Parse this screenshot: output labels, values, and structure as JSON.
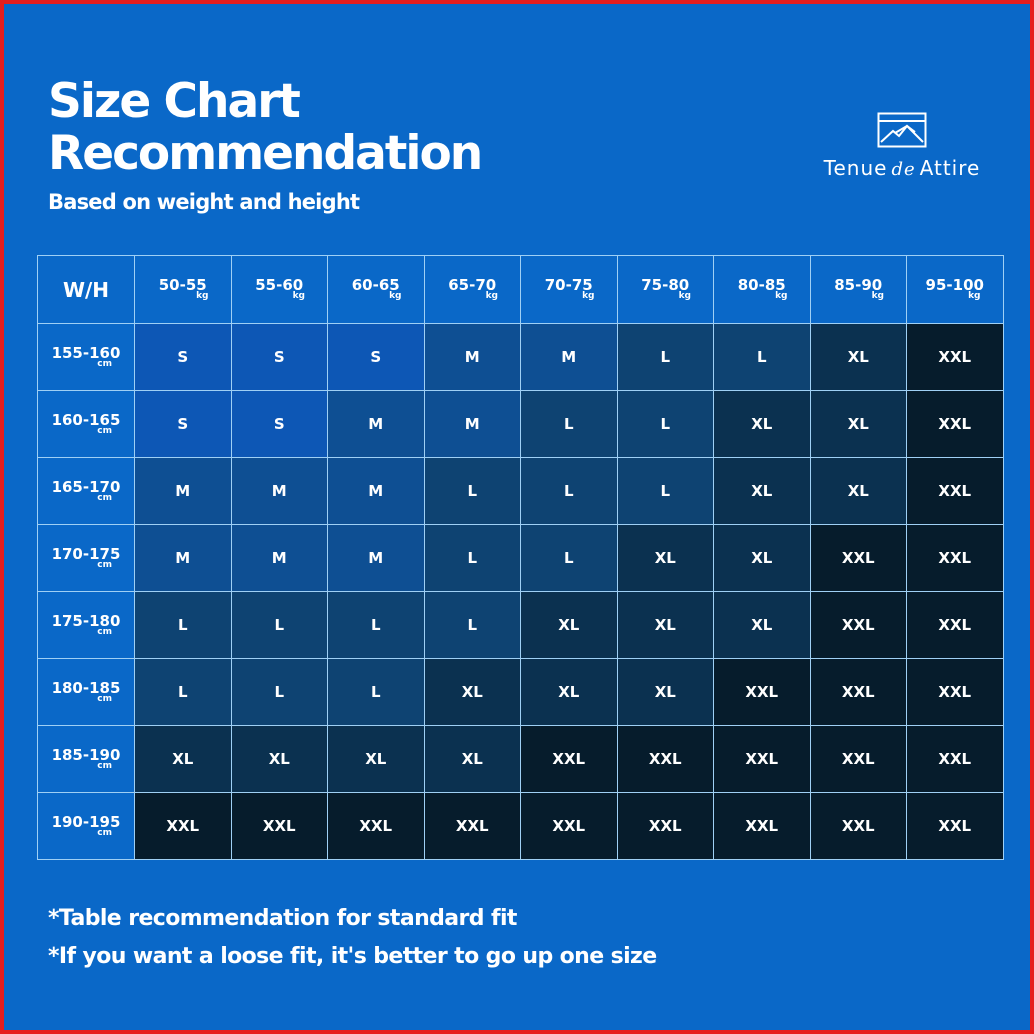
{
  "header": {
    "title_line1": "Size Chart",
    "title_line2": "Recommendation",
    "subtitle": "Based on weight and height"
  },
  "brand": {
    "name_part1": "Tenue",
    "name_part2": "de",
    "name_part3": "Attire",
    "logo_icon": "mountain-frame-icon"
  },
  "table": {
    "corner_label": "W/H",
    "weight_unit": "kg",
    "height_unit": "cm",
    "weights": [
      "50-55",
      "55-60",
      "60-65",
      "65-70",
      "70-75",
      "75-80",
      "80-85",
      "85-90",
      "95-100"
    ],
    "heights": [
      "155-160",
      "160-165",
      "165-170",
      "170-175",
      "175-180",
      "180-185",
      "185-190",
      "190-195"
    ],
    "sizes": [
      [
        "S",
        "S",
        "S",
        "M",
        "M",
        "L",
        "L",
        "XL",
        "XXL"
      ],
      [
        "S",
        "S",
        "M",
        "M",
        "L",
        "L",
        "XL",
        "XL",
        "XXL"
      ],
      [
        "M",
        "M",
        "M",
        "L",
        "L",
        "L",
        "XL",
        "XL",
        "XXL"
      ],
      [
        "M",
        "M",
        "M",
        "L",
        "L",
        "XL",
        "XL",
        "XXL",
        "XXL"
      ],
      [
        "L",
        "L",
        "L",
        "L",
        "XL",
        "XL",
        "XL",
        "XXL",
        "XXL"
      ],
      [
        "L",
        "L",
        "L",
        "XL",
        "XL",
        "XL",
        "XXL",
        "XXL",
        "XXL"
      ],
      [
        "XL",
        "XL",
        "XL",
        "XL",
        "XXL",
        "XXL",
        "XXL",
        "XXL",
        "XXL"
      ],
      [
        "XXL",
        "XXL",
        "XXL",
        "XXL",
        "XXL",
        "XXL",
        "XXL",
        "XXL",
        "XXL"
      ]
    ]
  },
  "notes": {
    "line1": "*Table recommendation for standard fit",
    "line2": "*If you want a loose fit, it's better to go up one size"
  },
  "colors": {
    "background": "#0a68c8",
    "border_frame": "#e61e1e",
    "grid_line": "#9fd0f5",
    "text": "#ffffff",
    "cell_S": "#0d57b5",
    "cell_M": "#0e4f93",
    "cell_L": "#0e4372",
    "cell_XL": "#0b3150",
    "cell_XXL": "#061c2c"
  }
}
